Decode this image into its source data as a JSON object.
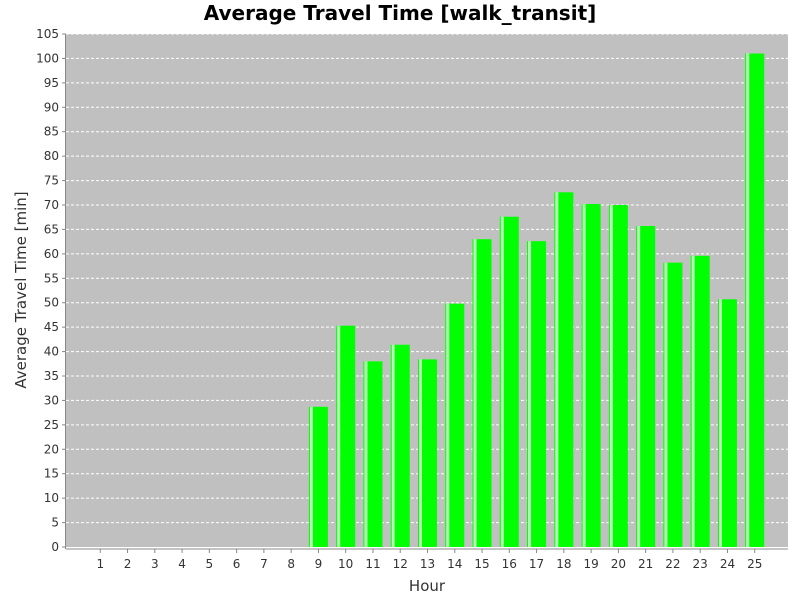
{
  "chart_data": {
    "type": "bar",
    "title": "Average Travel Time [walk_transit]",
    "xlabel": "Hour",
    "ylabel": "Average Travel Time [min]",
    "categories": [
      "1",
      "2",
      "3",
      "4",
      "5",
      "6",
      "7",
      "8",
      "9",
      "10",
      "11",
      "12",
      "13",
      "14",
      "15",
      "16",
      "17",
      "18",
      "19",
      "20",
      "21",
      "22",
      "23",
      "24",
      "25"
    ],
    "values": [
      0,
      0,
      0,
      0,
      0,
      0,
      0,
      0,
      28.7,
      45.3,
      38.0,
      41.4,
      38.4,
      49.8,
      63.0,
      67.6,
      62.6,
      72.6,
      70.2,
      70.0,
      65.7,
      58.2,
      59.6,
      50.7,
      101.0
    ],
    "ylim": [
      0,
      105
    ],
    "ytick_step": 5,
    "grid": true,
    "legend": "none",
    "colors": {
      "bar": "#00ff00",
      "bar_highlight": "#b8ffb8",
      "plot_background": "#c0c0c0",
      "gridline": "#ffffff",
      "axis": "#888888"
    }
  }
}
